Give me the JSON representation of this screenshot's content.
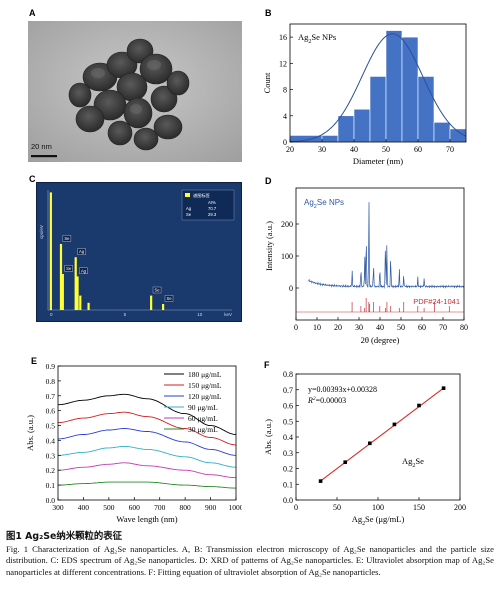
{
  "panels": {
    "A": {
      "label": "A",
      "scale_bar": "20 nm"
    },
    "B": {
      "label": "B"
    },
    "C": {
      "label": "C",
      "legend_title": "谱图标签",
      "legend_header": "At%",
      "legend_rows": [
        [
          "Ag",
          "70.7"
        ],
        [
          "Se",
          "29.3"
        ]
      ],
      "peak_labels": [
        "Se",
        "Ag",
        "Se",
        "Ag",
        "Se",
        "Se"
      ],
      "axis_ticks": [
        "0",
        "5",
        "10",
        "keV"
      ],
      "ylabel": "cps/eV"
    },
    "D": {
      "label": "D"
    },
    "E": {
      "label": "E"
    },
    "F": {
      "label": "F",
      "inset_label": "Ag2Se"
    }
  },
  "colors": {
    "bar_blue": "#4472c4",
    "fit_blue": "#2f4f9a",
    "xrd_blue": "#2e58a6",
    "xrd_red": "#c0303a",
    "eds_bg": "#1a3a6e",
    "eds_peak": "#ffff33",
    "fit_red": "#d92b2b"
  },
  "chart_data": [
    {
      "type": "bar",
      "panel": "B",
      "title": "Ag2Se NPs",
      "xlabel": "Diameter (nm)",
      "ylabel": "Count",
      "x_bins": [
        [
          20,
          30
        ],
        [
          30,
          35
        ],
        [
          35,
          40
        ],
        [
          40,
          45
        ],
        [
          45,
          50
        ],
        [
          50,
          55
        ],
        [
          55,
          60
        ],
        [
          60,
          65
        ],
        [
          65,
          70
        ],
        [
          70,
          75
        ]
      ],
      "values": [
        1,
        1,
        4,
        5,
        10,
        17,
        16,
        10,
        3,
        2
      ],
      "fit_curve": {
        "type": "gaussian",
        "mean": 52,
        "sd": 9.5,
        "peak": 16.5
      },
      "xlim": [
        20,
        75
      ],
      "ylim": [
        0,
        18
      ],
      "xticks": [
        20,
        30,
        40,
        50,
        60,
        70
      ],
      "yticks": [
        0,
        4,
        8,
        12,
        16
      ]
    },
    {
      "type": "line",
      "panel": "D",
      "title": "Ag2Se NPs",
      "reference_label": "PDF#24-1041",
      "xlabel": "2θ (degree)",
      "ylabel": "Intensity (a.u.)",
      "xlim": [
        0,
        80
      ],
      "xticks": [
        0,
        10,
        20,
        30,
        40,
        50,
        60,
        70,
        80
      ],
      "peaks": [
        [
          26.7,
          0.18
        ],
        [
          30.9,
          0.22
        ],
        [
          32.7,
          0.35
        ],
        [
          33.4,
          0.62
        ],
        [
          34.7,
          1.0
        ],
        [
          36.9,
          0.28
        ],
        [
          39.9,
          0.22
        ],
        [
          42.6,
          0.55
        ],
        [
          43.3,
          0.48
        ],
        [
          45.1,
          0.38
        ],
        [
          49.2,
          0.2
        ],
        [
          51.3,
          0.12
        ],
        [
          58.0,
          0.1
        ],
        [
          61.0,
          0.09
        ]
      ],
      "ref_peaks": [
        26.7,
        30.9,
        32.7,
        33.4,
        34.7,
        35.0,
        36.9,
        39.9,
        42.6,
        43.3,
        45.1,
        49.2,
        51.3,
        58.0,
        61.0,
        66.0,
        73.0
      ]
    },
    {
      "type": "line",
      "panel": "E",
      "xlabel": "Wave length (nm)",
      "ylabel": "Abs. (a.u.)",
      "xlim": [
        300,
        1000
      ],
      "ylim": [
        0,
        0.9
      ],
      "xticks": [
        300,
        400,
        500,
        600,
        700,
        800,
        900,
        1000
      ],
      "yticks": [
        0.0,
        0.1,
        0.2,
        0.3,
        0.4,
        0.5,
        0.6,
        0.7,
        0.8,
        0.9
      ],
      "series": [
        {
          "name": "180 μg/mL",
          "color": "#000000",
          "values": [
            [
              300,
              0.64
            ],
            [
              400,
              0.67
            ],
            [
              500,
              0.7
            ],
            [
              560,
              0.71
            ],
            [
              650,
              0.68
            ],
            [
              800,
              0.58
            ],
            [
              900,
              0.5
            ],
            [
              1000,
              0.44
            ]
          ]
        },
        {
          "name": "150 μg/mL",
          "color": "#d22020",
          "values": [
            [
              300,
              0.52
            ],
            [
              400,
              0.55
            ],
            [
              500,
              0.58
            ],
            [
              560,
              0.59
            ],
            [
              650,
              0.56
            ],
            [
              800,
              0.48
            ],
            [
              900,
              0.42
            ],
            [
              1000,
              0.37
            ]
          ]
        },
        {
          "name": "120 μg/mL",
          "color": "#2a3fd6",
          "values": [
            [
              300,
              0.41
            ],
            [
              400,
              0.44
            ],
            [
              500,
              0.47
            ],
            [
              560,
              0.48
            ],
            [
              650,
              0.46
            ],
            [
              800,
              0.39
            ],
            [
              900,
              0.34
            ],
            [
              1000,
              0.3
            ]
          ]
        },
        {
          "name": "90 μg/mL",
          "color": "#33b0c8",
          "values": [
            [
              300,
              0.3
            ],
            [
              400,
              0.32
            ],
            [
              500,
              0.35
            ],
            [
              560,
              0.36
            ],
            [
              650,
              0.34
            ],
            [
              800,
              0.29
            ],
            [
              900,
              0.25
            ],
            [
              1000,
              0.22
            ]
          ]
        },
        {
          "name": "60 μg/mL",
          "color": "#c23ab8",
          "values": [
            [
              300,
              0.2
            ],
            [
              400,
              0.22
            ],
            [
              500,
              0.24
            ],
            [
              560,
              0.25
            ],
            [
              650,
              0.23
            ],
            [
              800,
              0.2
            ],
            [
              900,
              0.17
            ],
            [
              1000,
              0.15
            ]
          ]
        },
        {
          "name": "30 μg/mL",
          "color": "#2a8a2a",
          "values": [
            [
              300,
              0.1
            ],
            [
              400,
              0.11
            ],
            [
              500,
              0.12
            ],
            [
              560,
              0.12
            ],
            [
              650,
              0.12
            ],
            [
              800,
              0.1
            ],
            [
              900,
              0.09
            ],
            [
              1000,
              0.08
            ]
          ]
        }
      ]
    },
    {
      "type": "scatter",
      "panel": "F",
      "xlabel": "Ag2Se (μg/mL)",
      "ylabel": "Abs. (a.u.)",
      "equation": "y=0.00393x+0.00328",
      "r2_label": "R",
      "r2_value": "=0.00003",
      "xlim": [
        0,
        200
      ],
      "ylim": [
        0,
        0.8
      ],
      "xticks": [
        0,
        50,
        100,
        150,
        200
      ],
      "yticks": [
        0.0,
        0.1,
        0.2,
        0.3,
        0.4,
        0.5,
        0.6,
        0.7,
        0.8
      ],
      "points": [
        [
          30,
          0.12
        ],
        [
          60,
          0.24
        ],
        [
          90,
          0.36
        ],
        [
          120,
          0.48
        ],
        [
          150,
          0.6
        ],
        [
          180,
          0.71
        ]
      ],
      "fit": {
        "slope": 0.00393,
        "intercept": 0.00328
      }
    }
  ],
  "caption": {
    "cn": "图1 Ag₂Se纳米颗粒的表征",
    "en": "Fig. 1 Characterization of Ag₂Se nanoparticles. A, B: Transmission electron microscopy of Ag₂Se nanoparticles and the particle size distribution. C: EDS spectrum of Ag₂Se nanoparticles. D: XRD of patterns of Ag₂Se nanoparticles. E: Ultraviolet absorption map of Ag₂Se nanoparticles at different concentrations. F: Fitting equation of ultraviolet absorption of Ag₂Se nanoparticles."
  }
}
